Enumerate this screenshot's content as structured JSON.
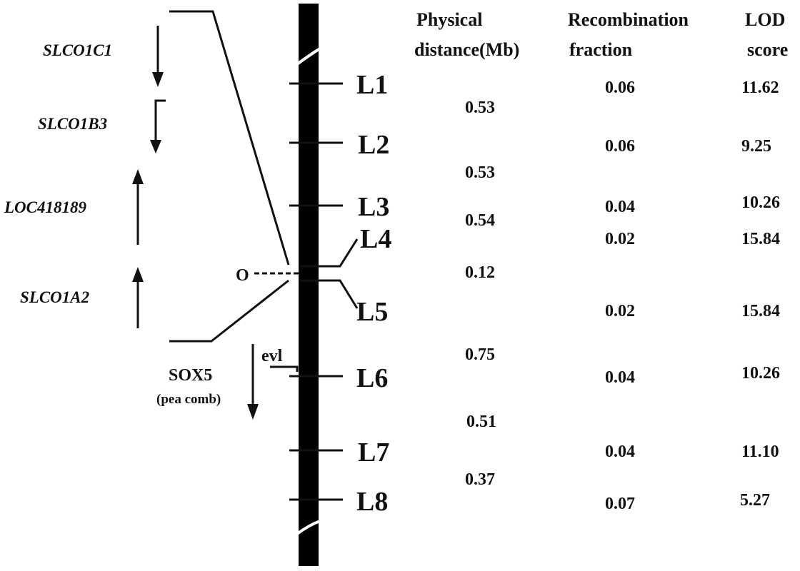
{
  "headers": {
    "physical_line1": "Physical",
    "physical_line2": "distance(Mb)",
    "recomb_line1": "Recombination",
    "recomb_line2": "fraction",
    "lod_line1": "LOD",
    "lod_line2": "score"
  },
  "markers": [
    "L1",
    "L2",
    "L3",
    "L4",
    "L5",
    "L6",
    "L7",
    "L8"
  ],
  "distances": [
    "0.53",
    "0.53",
    "0.54",
    "0.12",
    "0.75",
    "0.51",
    "0.37"
  ],
  "recombination_fractions": [
    "0.06",
    "0.06",
    "0.04",
    "0.02",
    "0.02",
    "0.04",
    "0.04",
    "0.07"
  ],
  "lod_scores": [
    "11.62",
    "9.25",
    "10.26",
    "15.84",
    "15.84",
    "10.26",
    "11.10",
    "5.27"
  ],
  "genes": [
    {
      "name": "SLCO1C1",
      "direction": "down"
    },
    {
      "name": "SLCO1B3",
      "direction": "down"
    },
    {
      "name": "LOC418189",
      "direction": "up"
    },
    {
      "name": "SLCO1A2",
      "direction": "up"
    }
  ],
  "origin_label": "O",
  "evl_label": "evl",
  "sox5": {
    "name": "SOX5",
    "note": "(pea comb)",
    "direction": "down"
  },
  "colors": {
    "ink": "#111111",
    "background": "#ffffff"
  }
}
